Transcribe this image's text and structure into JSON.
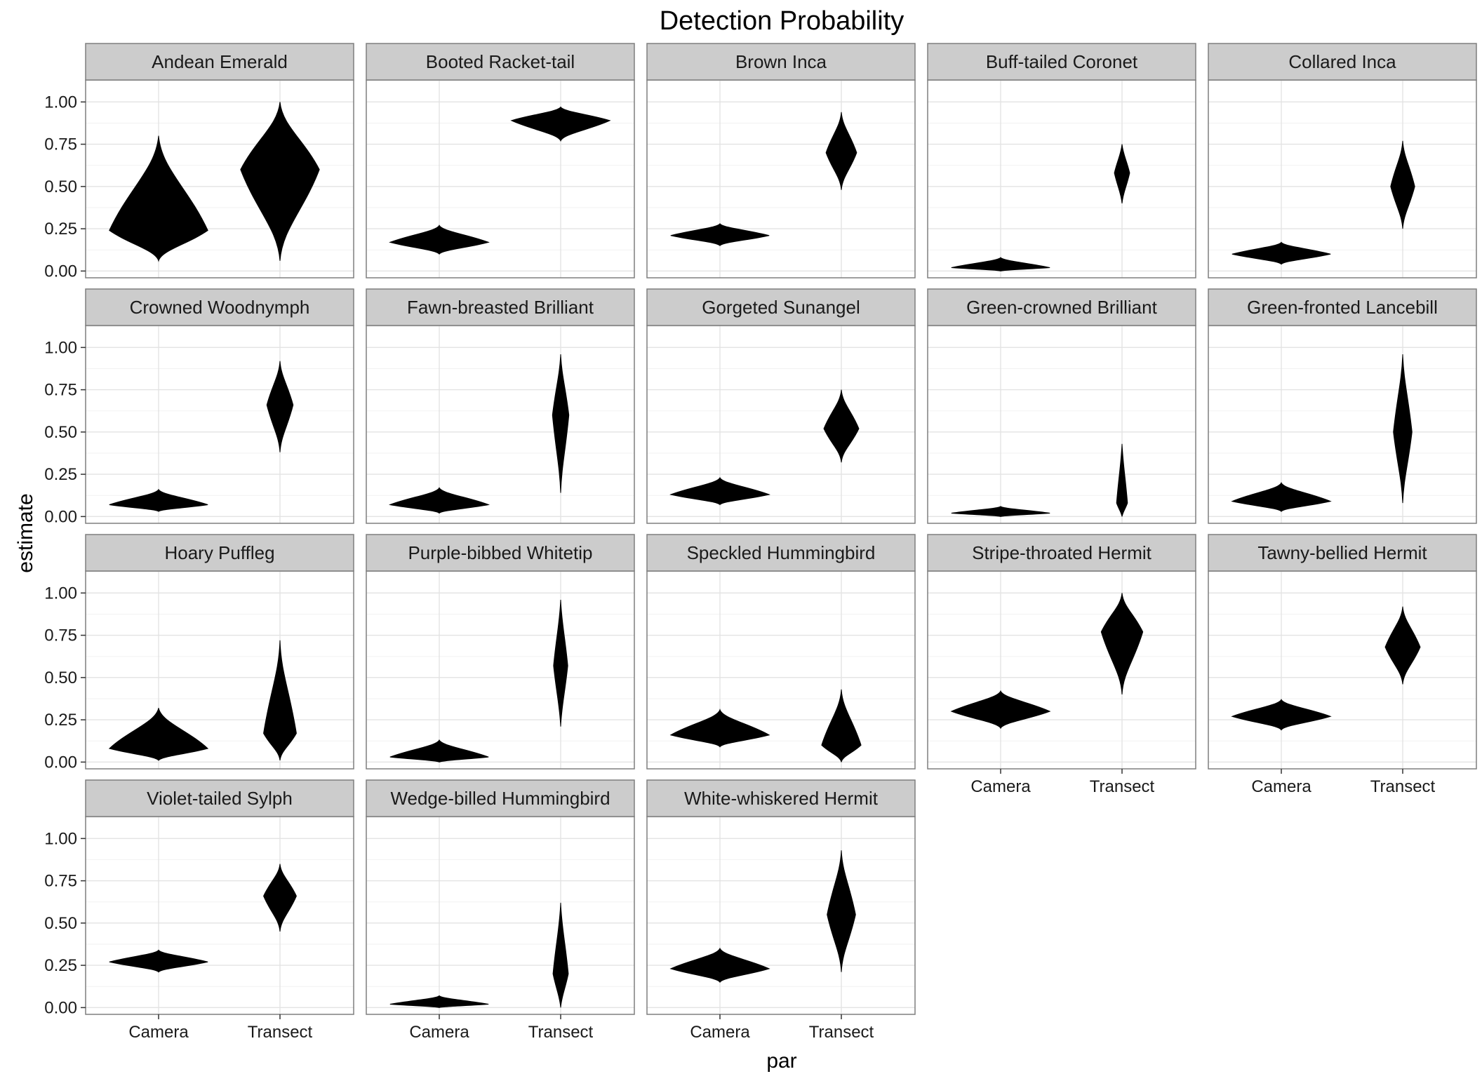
{
  "chart_data": {
    "type": "violin",
    "title": "Detection Probability",
    "xlabel": "par",
    "ylabel": "estimate",
    "categories": [
      "Camera",
      "Transect"
    ],
    "y_ticks": [
      "0.00",
      "0.25",
      "0.50",
      "0.75",
      "1.00"
    ],
    "ylim": [
      -0.04,
      1.13
    ],
    "grid": true,
    "facet_layout": {
      "columns": 5,
      "rows": 4
    },
    "fill_color": "#000000",
    "strip_color": "#cccccc",
    "panels": [
      {
        "title": "Andean Emerald",
        "violins": [
          {
            "category": "Camera",
            "min": 0.06,
            "median": 0.24,
            "max": 0.8,
            "width": 0.9
          },
          {
            "category": "Transect",
            "min": 0.06,
            "median": 0.6,
            "max": 1.0,
            "width": 0.72
          }
        ]
      },
      {
        "title": "Booted Racket-tail",
        "violins": [
          {
            "category": "Camera",
            "min": 0.1,
            "median": 0.17,
            "max": 0.27,
            "width": 0.9
          },
          {
            "category": "Transect",
            "min": 0.77,
            "median": 0.89,
            "max": 0.97,
            "width": 0.9
          }
        ]
      },
      {
        "title": "Brown Inca",
        "violins": [
          {
            "category": "Camera",
            "min": 0.15,
            "median": 0.21,
            "max": 0.28,
            "width": 0.9
          },
          {
            "category": "Transect",
            "min": 0.48,
            "median": 0.7,
            "max": 0.94,
            "width": 0.28
          }
        ]
      },
      {
        "title": "Buff-tailed Coronet",
        "violins": [
          {
            "category": "Camera",
            "min": 0.0,
            "median": 0.02,
            "max": 0.08,
            "width": 0.9
          },
          {
            "category": "Transect",
            "min": 0.4,
            "median": 0.58,
            "max": 0.75,
            "width": 0.14
          }
        ]
      },
      {
        "title": "Collared Inca",
        "violins": [
          {
            "category": "Camera",
            "min": 0.04,
            "median": 0.1,
            "max": 0.17,
            "width": 0.9
          },
          {
            "category": "Transect",
            "min": 0.25,
            "median": 0.5,
            "max": 0.77,
            "width": 0.22
          }
        ]
      },
      {
        "title": "Crowned Woodnymph",
        "violins": [
          {
            "category": "Camera",
            "min": 0.03,
            "median": 0.07,
            "max": 0.16,
            "width": 0.9
          },
          {
            "category": "Transect",
            "min": 0.38,
            "median": 0.66,
            "max": 0.92,
            "width": 0.24
          }
        ]
      },
      {
        "title": "Fawn-breasted Brilliant",
        "violins": [
          {
            "category": "Camera",
            "min": 0.02,
            "median": 0.07,
            "max": 0.17,
            "width": 0.9
          },
          {
            "category": "Transect",
            "min": 0.14,
            "median": 0.6,
            "max": 0.96,
            "width": 0.15
          }
        ]
      },
      {
        "title": "Gorgeted Sunangel",
        "violins": [
          {
            "category": "Camera",
            "min": 0.07,
            "median": 0.13,
            "max": 0.23,
            "width": 0.9
          },
          {
            "category": "Transect",
            "min": 0.32,
            "median": 0.52,
            "max": 0.75,
            "width": 0.32
          }
        ]
      },
      {
        "title": "Green-crowned Brilliant",
        "violins": [
          {
            "category": "Camera",
            "min": 0.0,
            "median": 0.02,
            "max": 0.06,
            "width": 0.9
          },
          {
            "category": "Transect",
            "min": 0.0,
            "median": 0.08,
            "max": 0.43,
            "width": 0.1
          }
        ]
      },
      {
        "title": "Green-fronted Lancebill",
        "violins": [
          {
            "category": "Camera",
            "min": 0.03,
            "median": 0.09,
            "max": 0.2,
            "width": 0.9
          },
          {
            "category": "Transect",
            "min": 0.08,
            "median": 0.5,
            "max": 0.96,
            "width": 0.17
          }
        ]
      },
      {
        "title": "Hoary Puffleg",
        "violins": [
          {
            "category": "Camera",
            "min": 0.01,
            "median": 0.08,
            "max": 0.32,
            "width": 0.9
          },
          {
            "category": "Transect",
            "min": 0.01,
            "median": 0.17,
            "max": 0.72,
            "width": 0.3
          }
        ]
      },
      {
        "title": "Purple-bibbed Whitetip",
        "violins": [
          {
            "category": "Camera",
            "min": 0.0,
            "median": 0.03,
            "max": 0.13,
            "width": 0.9
          },
          {
            "category": "Transect",
            "min": 0.21,
            "median": 0.57,
            "max": 0.96,
            "width": 0.13
          }
        ]
      },
      {
        "title": "Speckled Hummingbird",
        "violins": [
          {
            "category": "Camera",
            "min": 0.09,
            "median": 0.16,
            "max": 0.31,
            "width": 0.9
          },
          {
            "category": "Transect",
            "min": 0.0,
            "median": 0.1,
            "max": 0.43,
            "width": 0.36
          }
        ]
      },
      {
        "title": "Stripe-throated Hermit",
        "violins": [
          {
            "category": "Camera",
            "min": 0.2,
            "median": 0.3,
            "max": 0.42,
            "width": 0.9
          },
          {
            "category": "Transect",
            "min": 0.4,
            "median": 0.77,
            "max": 1.0,
            "width": 0.38
          }
        ]
      },
      {
        "title": "Tawny-bellied Hermit",
        "violins": [
          {
            "category": "Camera",
            "min": 0.19,
            "median": 0.27,
            "max": 0.37,
            "width": 0.9
          },
          {
            "category": "Transect",
            "min": 0.46,
            "median": 0.68,
            "max": 0.92,
            "width": 0.32
          }
        ]
      },
      {
        "title": "Violet-tailed Sylph",
        "violins": [
          {
            "category": "Camera",
            "min": 0.21,
            "median": 0.27,
            "max": 0.34,
            "width": 0.9
          },
          {
            "category": "Transect",
            "min": 0.45,
            "median": 0.66,
            "max": 0.85,
            "width": 0.3
          }
        ]
      },
      {
        "title": "Wedge-billed Hummingbird",
        "violins": [
          {
            "category": "Camera",
            "min": 0.0,
            "median": 0.02,
            "max": 0.07,
            "width": 0.9
          },
          {
            "category": "Transect",
            "min": 0.0,
            "median": 0.2,
            "max": 0.62,
            "width": 0.14
          }
        ]
      },
      {
        "title": "White-whiskered Hermit",
        "violins": [
          {
            "category": "Camera",
            "min": 0.15,
            "median": 0.23,
            "max": 0.35,
            "width": 0.9
          },
          {
            "category": "Transect",
            "min": 0.21,
            "median": 0.55,
            "max": 0.93,
            "width": 0.26
          }
        ]
      }
    ]
  }
}
